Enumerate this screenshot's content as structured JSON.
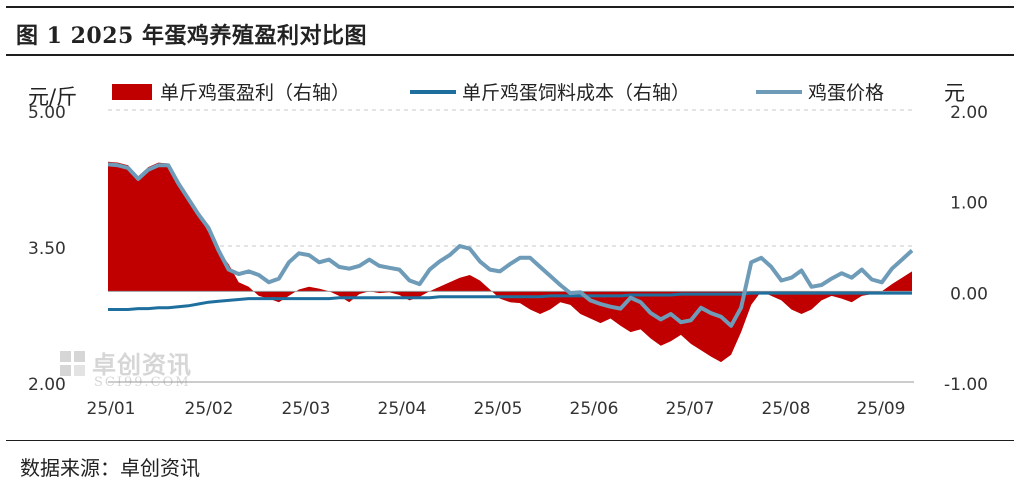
{
  "title": "图 1  2025 年蛋鸡养殖盈利对比图",
  "source": "数据来源：卓创资讯",
  "watermark": {
    "brand": "卓创资讯",
    "site": "SCI99.COM"
  },
  "colors": {
    "profit": "#c00000",
    "cost": "#1f6f9e",
    "price": "#6e9bb8"
  },
  "chart_data": {
    "type": "line",
    "left_axis_unit": "元/斤",
    "right_axis_unit": "元",
    "left_ylim": [
      2.0,
      5.0
    ],
    "left_ticks": [
      "5.00",
      "3.50",
      "2.00"
    ],
    "right_ylim": [
      -1.0,
      2.0
    ],
    "right_ticks": [
      "2.00",
      "1.00",
      "0.00",
      "-1.00"
    ],
    "x_labels": [
      "25/01",
      "25/02",
      "25/03",
      "25/04",
      "25/05",
      "25/06",
      "25/07",
      "25/08",
      "25/09"
    ],
    "legend": [
      "单斤鸡蛋盈利（右轴）",
      "单斤鸡蛋饲料成本（右轴）",
      "鸡蛋价格"
    ],
    "legend_position": "top",
    "series": [
      {
        "name": "单斤鸡蛋盈利（右轴）",
        "type": "area",
        "axis": "right",
        "values": [
          1.43,
          1.42,
          1.39,
          1.27,
          1.37,
          1.42,
          1.41,
          1.22,
          1.05,
          0.85,
          0.65,
          0.45,
          0.3,
          0.1,
          0.05,
          -0.05,
          -0.08,
          -0.12,
          -0.05,
          0.02,
          0.05,
          0.03,
          0.0,
          -0.05,
          -0.12,
          -0.03,
          0.0,
          -0.02,
          -0.01,
          -0.04,
          -0.1,
          -0.06,
          0.0,
          0.05,
          0.1,
          0.15,
          0.18,
          0.12,
          0.02,
          -0.08,
          -0.12,
          -0.13,
          -0.2,
          -0.25,
          -0.2,
          -0.12,
          -0.15,
          -0.25,
          -0.3,
          -0.35,
          -0.3,
          -0.38,
          -0.45,
          -0.42,
          -0.52,
          -0.6,
          -0.55,
          -0.48,
          -0.58,
          -0.65,
          -0.72,
          -0.78,
          -0.7,
          -0.45,
          -0.15,
          0.0,
          -0.05,
          -0.1,
          -0.2,
          -0.25,
          -0.2,
          -0.1,
          -0.05,
          -0.08,
          -0.12,
          -0.05,
          -0.03,
          0.0,
          0.08,
          0.15,
          0.22
        ]
      },
      {
        "name": "单斤鸡蛋饲料成本（右轴）",
        "type": "line",
        "axis": "right",
        "values": [
          -0.2,
          -0.2,
          -0.2,
          -0.19,
          -0.19,
          -0.18,
          -0.18,
          -0.17,
          -0.16,
          -0.14,
          -0.12,
          -0.11,
          -0.1,
          -0.09,
          -0.08,
          -0.08,
          -0.08,
          -0.08,
          -0.08,
          -0.08,
          -0.08,
          -0.08,
          -0.08,
          -0.07,
          -0.07,
          -0.07,
          -0.07,
          -0.07,
          -0.07,
          -0.07,
          -0.07,
          -0.07,
          -0.07,
          -0.06,
          -0.06,
          -0.06,
          -0.06,
          -0.06,
          -0.06,
          -0.06,
          -0.06,
          -0.06,
          -0.06,
          -0.06,
          -0.05,
          -0.05,
          -0.05,
          -0.05,
          -0.05,
          -0.05,
          -0.05,
          -0.05,
          -0.04,
          -0.04,
          -0.04,
          -0.04,
          -0.04,
          -0.03,
          -0.03,
          -0.03,
          -0.03,
          -0.03,
          -0.03,
          -0.03,
          -0.02,
          -0.02,
          -0.02,
          -0.02,
          -0.02,
          -0.02,
          -0.02,
          -0.02,
          -0.02,
          -0.02,
          -0.02,
          -0.02,
          -0.02,
          -0.02,
          -0.02,
          -0.02,
          -0.02
        ]
      },
      {
        "name": "鸡蛋价格",
        "type": "line",
        "axis": "left",
        "values": [
          4.4,
          4.39,
          4.36,
          4.24,
          4.34,
          4.39,
          4.39,
          4.19,
          4.02,
          3.85,
          3.7,
          3.45,
          3.24,
          3.19,
          3.22,
          3.18,
          3.1,
          3.14,
          3.32,
          3.42,
          3.4,
          3.32,
          3.35,
          3.27,
          3.25,
          3.28,
          3.35,
          3.28,
          3.26,
          3.24,
          3.12,
          3.08,
          3.24,
          3.33,
          3.4,
          3.5,
          3.47,
          3.33,
          3.24,
          3.22,
          3.3,
          3.37,
          3.37,
          3.27,
          3.17,
          3.07,
          2.98,
          2.99,
          2.9,
          2.86,
          2.83,
          2.81,
          2.93,
          2.88,
          2.76,
          2.69,
          2.75,
          2.66,
          2.68,
          2.82,
          2.76,
          2.72,
          2.62,
          2.82,
          3.32,
          3.37,
          3.27,
          3.12,
          3.15,
          3.23,
          3.05,
          3.07,
          3.14,
          3.2,
          3.15,
          3.24,
          3.13,
          3.1,
          3.25,
          3.35,
          3.45
        ]
      }
    ]
  }
}
